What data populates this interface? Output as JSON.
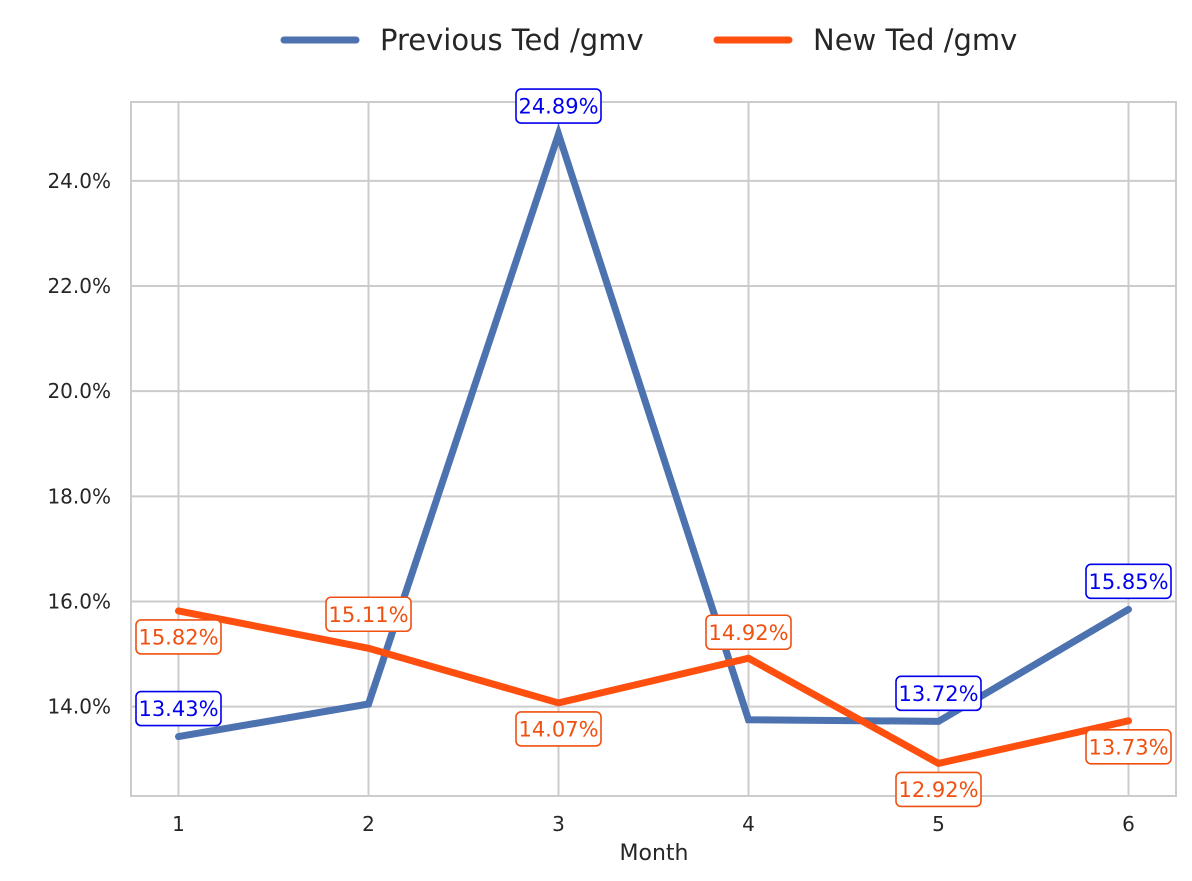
{
  "chart_data": {
    "type": "line",
    "title": "",
    "xlabel": "Month",
    "ylabel": "",
    "x": [
      1,
      2,
      3,
      4,
      5,
      6
    ],
    "x_tick_labels": [
      "1",
      "2",
      "3",
      "4",
      "5",
      "6"
    ],
    "ylim": [
      12.3,
      25.5
    ],
    "y_ticks": [
      14,
      16,
      18,
      20,
      22,
      24
    ],
    "y_tick_labels": [
      "14.0%",
      "16.0%",
      "18.0%",
      "20.0%",
      "22.0%",
      "24.0%"
    ],
    "grid": true,
    "legend_position": "top-center",
    "series": [
      {
        "name": "Previous Ted /gmv",
        "color": "#4c72b0",
        "label_color": "#0000ee",
        "values": [
          13.43,
          14.05,
          24.89,
          13.75,
          13.72,
          15.85
        ],
        "data_labels": [
          "13.43%",
          "",
          "24.89%",
          "",
          "13.72%",
          "15.85%"
        ]
      },
      {
        "name": "New Ted /gmv",
        "color": "#ff4f0f",
        "label_color": "#f05010",
        "values": [
          15.82,
          15.11,
          14.07,
          14.92,
          12.92,
          13.73
        ],
        "data_labels": [
          "15.82%",
          "15.11%",
          "14.07%",
          "14.92%",
          "12.92%",
          "13.73%"
        ]
      }
    ]
  }
}
